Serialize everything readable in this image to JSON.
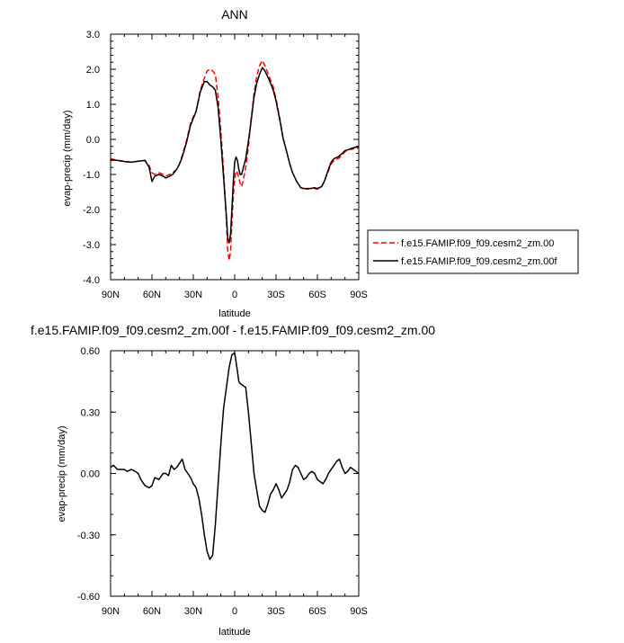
{
  "chart_data": [
    {
      "type": "line",
      "title": "ANN",
      "xlabel": "latitude",
      "ylabel": "evap-precip (mm/day)",
      "xlim": [
        90,
        -90
      ],
      "ylim": [
        -4.0,
        3.0
      ],
      "x_ticks": [
        90,
        60,
        30,
        0,
        -30,
        -60,
        -90
      ],
      "x_tick_labels": [
        "90N",
        "60N",
        "30N",
        "0",
        "30S",
        "60S",
        "90S"
      ],
      "y_ticks": [
        3.0,
        2.0,
        1.0,
        0.0,
        -1.0,
        -2.0,
        -3.0,
        -4.0
      ],
      "y_tick_labels": [
        "3.0",
        "2.0",
        "1.0",
        "0.0",
        "-1.0",
        "-2.0",
        "-3.0",
        "-4.0"
      ],
      "grid": false,
      "legend_position": "right",
      "series": [
        {
          "name": "f.e15.FAMIP.f09_f09.cesm2_zm.00",
          "color": "#ff0000",
          "style": "dashed",
          "x": [
            90,
            85,
            80,
            75,
            70,
            65,
            62,
            60,
            58,
            55,
            52,
            50,
            47,
            45,
            42,
            40,
            38,
            35,
            32,
            30,
            28,
            25,
            22,
            20,
            18,
            16,
            14,
            12,
            10,
            8,
            6,
            5,
            4,
            3,
            2,
            1,
            0,
            -1,
            -2,
            -3,
            -4,
            -5,
            -6,
            -8,
            -10,
            -12,
            -14,
            -16,
            -18,
            -20,
            -22,
            -25,
            -28,
            -30,
            -33,
            -35,
            -38,
            -40,
            -42,
            -45,
            -48,
            -50,
            -52,
            -55,
            -58,
            -60,
            -63,
            -65,
            -68,
            -70,
            -72,
            -75,
            -78,
            -80,
            -82,
            -85,
            -88,
            -90
          ],
          "y": [
            -0.55,
            -0.6,
            -0.62,
            -0.65,
            -0.62,
            -0.6,
            -0.75,
            -0.95,
            -1.0,
            -0.95,
            -1.0,
            -1.05,
            -1.0,
            -0.95,
            -0.85,
            -0.7,
            -0.45,
            -0.05,
            0.45,
            0.65,
            0.8,
            1.4,
            1.75,
            1.95,
            2.0,
            1.95,
            1.85,
            1.2,
            0.2,
            -0.9,
            -2.3,
            -3.2,
            -3.45,
            -3.2,
            -2.4,
            -1.6,
            -1.15,
            -0.9,
            -0.95,
            -1.1,
            -1.25,
            -1.35,
            -1.2,
            -0.8,
            -0.2,
            0.6,
            1.3,
            1.8,
            2.1,
            2.25,
            2.1,
            1.8,
            1.5,
            1.15,
            0.55,
            0.05,
            -0.4,
            -0.7,
            -0.95,
            -1.2,
            -1.38,
            -1.4,
            -1.42,
            -1.4,
            -1.4,
            -1.42,
            -1.35,
            -1.2,
            -0.9,
            -0.7,
            -0.6,
            -0.55,
            -0.45,
            -0.35,
            -0.3,
            -0.28,
            -0.25,
            -0.25
          ]
        },
        {
          "name": "f.e15.FAMIP.f09_f09.cesm2_zm.00f",
          "color": "#000000",
          "style": "solid",
          "x": [
            90,
            85,
            80,
            75,
            70,
            65,
            62,
            60,
            58,
            55,
            52,
            50,
            47,
            45,
            42,
            40,
            38,
            35,
            32,
            30,
            28,
            25,
            22,
            20,
            18,
            16,
            14,
            12,
            10,
            8,
            6,
            5,
            4,
            3,
            2,
            1,
            0,
            -1,
            -2,
            -3,
            -4,
            -5,
            -6,
            -8,
            -10,
            -12,
            -14,
            -16,
            -18,
            -20,
            -22,
            -25,
            -28,
            -30,
            -33,
            -35,
            -38,
            -40,
            -42,
            -45,
            -48,
            -50,
            -52,
            -55,
            -58,
            -60,
            -63,
            -65,
            -68,
            -70,
            -72,
            -75,
            -78,
            -80,
            -82,
            -85,
            -88,
            -90
          ],
          "y": [
            -0.58,
            -0.6,
            -0.63,
            -0.65,
            -0.62,
            -0.6,
            -0.8,
            -1.2,
            -1.05,
            -1.0,
            -1.05,
            -1.1,
            -1.05,
            -1.0,
            -0.85,
            -0.7,
            -0.5,
            -0.1,
            0.4,
            0.6,
            0.8,
            1.35,
            1.65,
            1.65,
            1.55,
            1.5,
            1.4,
            0.9,
            -0.05,
            -1.1,
            -2.2,
            -2.8,
            -2.95,
            -2.7,
            -2.0,
            -1.2,
            -0.65,
            -0.5,
            -0.6,
            -0.85,
            -1.0,
            -1.0,
            -0.85,
            -0.55,
            -0.05,
            0.55,
            1.2,
            1.6,
            1.85,
            2.05,
            1.95,
            1.7,
            1.4,
            1.1,
            0.5,
            0.05,
            -0.4,
            -0.7,
            -0.95,
            -1.2,
            -1.38,
            -1.4,
            -1.4,
            -1.4,
            -1.38,
            -1.4,
            -1.35,
            -1.2,
            -0.85,
            -0.65,
            -0.55,
            -0.5,
            -0.4,
            -0.32,
            -0.3,
            -0.25,
            -0.22,
            -0.22
          ]
        }
      ]
    },
    {
      "type": "line",
      "title": "f.e15.FAMIP.f09_f09.cesm2_zm.00f - f.e15.FAMIP.f09_f09.cesm2_zm.00",
      "xlabel": "latitude",
      "ylabel": "evap-precip (mm/day)",
      "xlim": [
        90,
        -90
      ],
      "ylim": [
        -0.6,
        0.6
      ],
      "x_ticks": [
        90,
        60,
        30,
        0,
        -30,
        -60,
        -90
      ],
      "x_tick_labels": [
        "90N",
        "60N",
        "30N",
        "0",
        "30S",
        "60S",
        "90S"
      ],
      "y_ticks": [
        0.6,
        0.3,
        0.0,
        -0.3,
        -0.6
      ],
      "y_tick_labels": [
        "0.60",
        "0.30",
        "0.00",
        "-0.30",
        "-0.60"
      ],
      "grid": false,
      "series": [
        {
          "color": "#000000",
          "style": "solid",
          "x": [
            90,
            88,
            85,
            82,
            80,
            78,
            75,
            72,
            70,
            68,
            65,
            62,
            60,
            58,
            55,
            52,
            50,
            48,
            46,
            44,
            42,
            40,
            38,
            36,
            34,
            32,
            30,
            28,
            26,
            24,
            22,
            20,
            18,
            16,
            14,
            12,
            10,
            8,
            6,
            4,
            2,
            0,
            -2,
            -3,
            -4,
            -6,
            -8,
            -10,
            -12,
            -14,
            -16,
            -18,
            -20,
            -22,
            -24,
            -26,
            -28,
            -30,
            -32,
            -34,
            -36,
            -38,
            -40,
            -42,
            -44,
            -46,
            -48,
            -50,
            -52,
            -54,
            -56,
            -58,
            -60,
            -62,
            -64,
            -66,
            -68,
            -70,
            -72,
            -74,
            -76,
            -78,
            -80,
            -82,
            -84,
            -86,
            -88,
            -90
          ],
          "y": [
            0.03,
            0.04,
            0.02,
            0.02,
            0.02,
            0.01,
            0.02,
            0.01,
            0.0,
            -0.03,
            -0.06,
            -0.07,
            -0.06,
            -0.02,
            -0.03,
            0.0,
            0.0,
            -0.01,
            0.04,
            0.02,
            0.03,
            0.05,
            0.07,
            0.02,
            0.0,
            -0.02,
            -0.05,
            -0.07,
            -0.12,
            -0.2,
            -0.3,
            -0.38,
            -0.42,
            -0.4,
            -0.25,
            -0.05,
            0.15,
            0.32,
            0.42,
            0.52,
            0.58,
            0.59,
            0.5,
            0.45,
            0.44,
            0.43,
            0.42,
            0.3,
            0.15,
            0.0,
            -0.08,
            -0.16,
            -0.18,
            -0.19,
            -0.15,
            -0.1,
            -0.08,
            -0.05,
            -0.08,
            -0.12,
            -0.1,
            -0.08,
            -0.04,
            0.02,
            0.04,
            0.03,
            0.0,
            -0.03,
            -0.02,
            0.0,
            0.01,
            0.0,
            -0.03,
            -0.04,
            -0.05,
            -0.03,
            0.0,
            0.02,
            0.04,
            0.06,
            0.07,
            0.03,
            0.0,
            0.01,
            0.03,
            0.02,
            0.01,
            0.0
          ]
        }
      ]
    }
  ]
}
